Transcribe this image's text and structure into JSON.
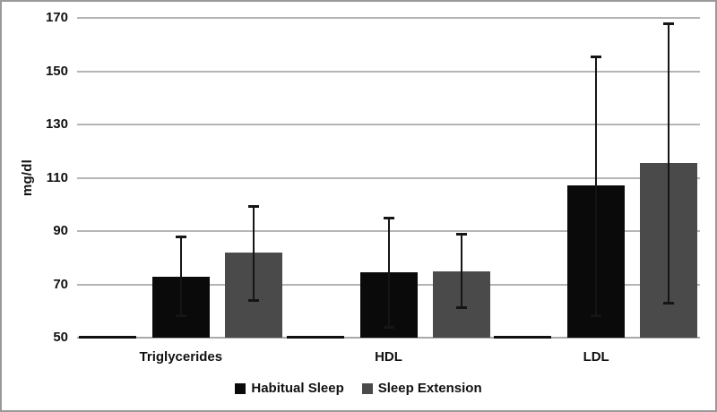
{
  "figure": {
    "background": "#ffffff",
    "border_color": "#9a9a9a",
    "gridline_color": "#b5b5b5",
    "baseline_color": "#a9a9a9",
    "error_bar_color": "#151515"
  },
  "chart_data": {
    "type": "bar",
    "title": "",
    "xlabel": "",
    "ylabel": "mg/dl",
    "ylim": [
      50,
      170
    ],
    "yticks": [
      170,
      150,
      130,
      110,
      90,
      70,
      50
    ],
    "grid": true,
    "legend_position": "bottom",
    "categories": [
      "Triglycerides",
      "HDL",
      "LDL"
    ],
    "series": [
      {
        "name": "Habitual Sleep",
        "color": "#0a0a0a",
        "values": [
          73,
          74.5,
          107
        ],
        "error_low": [
          58.5,
          54,
          58.5
        ],
        "error_high": [
          88,
          95,
          155.5
        ]
      },
      {
        "name": "Sleep Extension",
        "color": "#4a4a4a",
        "values": [
          82,
          75,
          115.5
        ],
        "error_low": [
          64,
          61.5,
          63
        ],
        "error_high": [
          99.5,
          89,
          168
        ]
      }
    ],
    "baseline_marker_value": 50
  }
}
